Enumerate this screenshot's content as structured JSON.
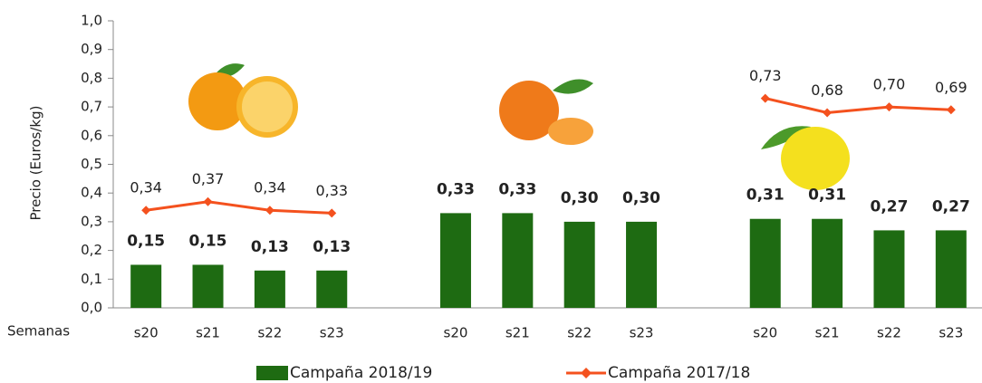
{
  "chart_data": {
    "type": "bar-line",
    "y_label": "Precio (Euros/kg)",
    "x_label": "Semanas",
    "categories": [
      "s20",
      "s21",
      "s22",
      "s23",
      null,
      "s20",
      "s21",
      "s22",
      "s23",
      null,
      "s20",
      "s21",
      "s22",
      "s23"
    ],
    "ylim": [
      0,
      1
    ],
    "yticks": [
      {
        "value": 0,
        "label": "0,0"
      },
      {
        "value": 0.1,
        "label": "0,1"
      },
      {
        "value": 0.2,
        "label": "0,2"
      },
      {
        "value": 0.3,
        "label": "0,3"
      },
      {
        "value": 0.4,
        "label": "0,4"
      },
      {
        "value": 0.5,
        "label": "0,5"
      },
      {
        "value": 0.6,
        "label": "0,6"
      },
      {
        "value": 0.7,
        "label": "0,7"
      },
      {
        "value": 0.8,
        "label": "0,8"
      },
      {
        "value": 0.9,
        "label": "0,9"
      },
      {
        "value": 1,
        "label": "1,0"
      }
    ],
    "series": [
      {
        "name": "Campaña 2018/19",
        "type": "bar",
        "color": "#1e6b12",
        "values": [
          0.15,
          0.15,
          0.13,
          0.13,
          null,
          0.33,
          0.33,
          0.3,
          0.3,
          null,
          0.31,
          0.31,
          0.27,
          0.27
        ],
        "value_labels": [
          "0,15",
          "0,15",
          "0,13",
          "0,13",
          null,
          "0,33",
          "0,33",
          "0,30",
          "0,30",
          null,
          "0,31",
          "0,31",
          "0,27",
          "0,27"
        ]
      },
      {
        "name": "Campaña 2017/18",
        "type": "line",
        "color": "#f4511e",
        "values": [
          0.34,
          0.37,
          0.34,
          0.33,
          null,
          null,
          null,
          null,
          null,
          null,
          0.73,
          0.68,
          0.7,
          0.69
        ],
        "value_labels": [
          "0,34",
          "0,37",
          "0,34",
          "0,33",
          null,
          null,
          null,
          null,
          null,
          null,
          "0,73",
          "0,68",
          "0,70",
          "0,69"
        ]
      }
    ]
  }
}
